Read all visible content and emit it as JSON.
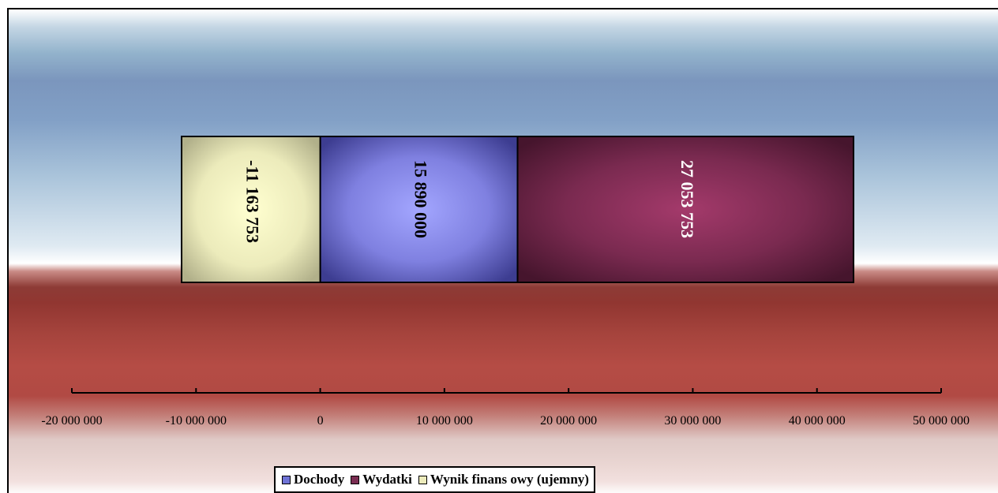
{
  "chart_data": {
    "type": "bar",
    "orientation": "horizontal",
    "stacked": true,
    "series": [
      {
        "name": "Dochody",
        "values": [
          15890000
        ],
        "value_label": "15 890 000",
        "color": "#7f80e0",
        "label_color": "#000000"
      },
      {
        "name": "Wydatki",
        "values": [
          27053753
        ],
        "value_label": "27 053 753",
        "color": "#7a2d52",
        "label_color": "#ffffff"
      },
      {
        "name": "Wynik finans owy  (ujemny)",
        "values": [
          -11163753
        ],
        "value_label": "-11 163 753",
        "color": "#ecebbb",
        "label_color": "#000000"
      }
    ],
    "xlim": [
      -20000000,
      50000000
    ],
    "xticks": [
      -20000000,
      -10000000,
      0,
      10000000,
      20000000,
      30000000,
      40000000,
      50000000
    ],
    "xtick_labels": [
      "-20 000 000",
      "-10 000 000",
      "0",
      "10 000 000",
      "20 000 000",
      "30 000 000",
      "40 000 000",
      "50 000 000"
    ],
    "grid": false,
    "legend_position": "bottom"
  },
  "legend": {
    "items": [
      {
        "label": "Dochody",
        "color": "#6f73d6"
      },
      {
        "label": "Wydatki",
        "color": "#7a2d52"
      },
      {
        "label": "Wynik finans owy  (ujemny)",
        "color": "#ecebbb"
      }
    ]
  }
}
